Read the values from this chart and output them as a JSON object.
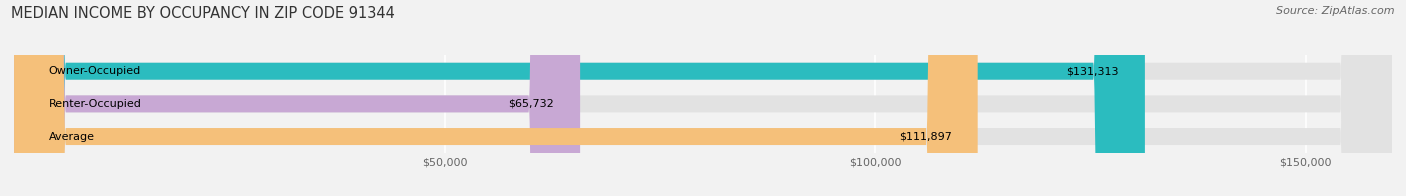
{
  "title": "MEDIAN INCOME BY OCCUPANCY IN ZIP CODE 91344",
  "source": "Source: ZipAtlas.com",
  "categories": [
    "Owner-Occupied",
    "Renter-Occupied",
    "Average"
  ],
  "values": [
    131313,
    65732,
    111897
  ],
  "labels": [
    "$131,313",
    "$65,732",
    "$111,897"
  ],
  "bar_colors": [
    "#2bbcbf",
    "#c8a8d4",
    "#f5c07a"
  ],
  "background_color": "#f2f2f2",
  "bar_bg_color": "#e2e2e2",
  "xlim": [
    0,
    160000
  ],
  "xticks": [
    50000,
    100000,
    150000
  ],
  "xtick_labels": [
    "$50,000",
    "$100,000",
    "$150,000"
  ],
  "title_fontsize": 10.5,
  "label_fontsize": 8,
  "tick_fontsize": 8,
  "source_fontsize": 8,
  "bar_height": 0.52
}
